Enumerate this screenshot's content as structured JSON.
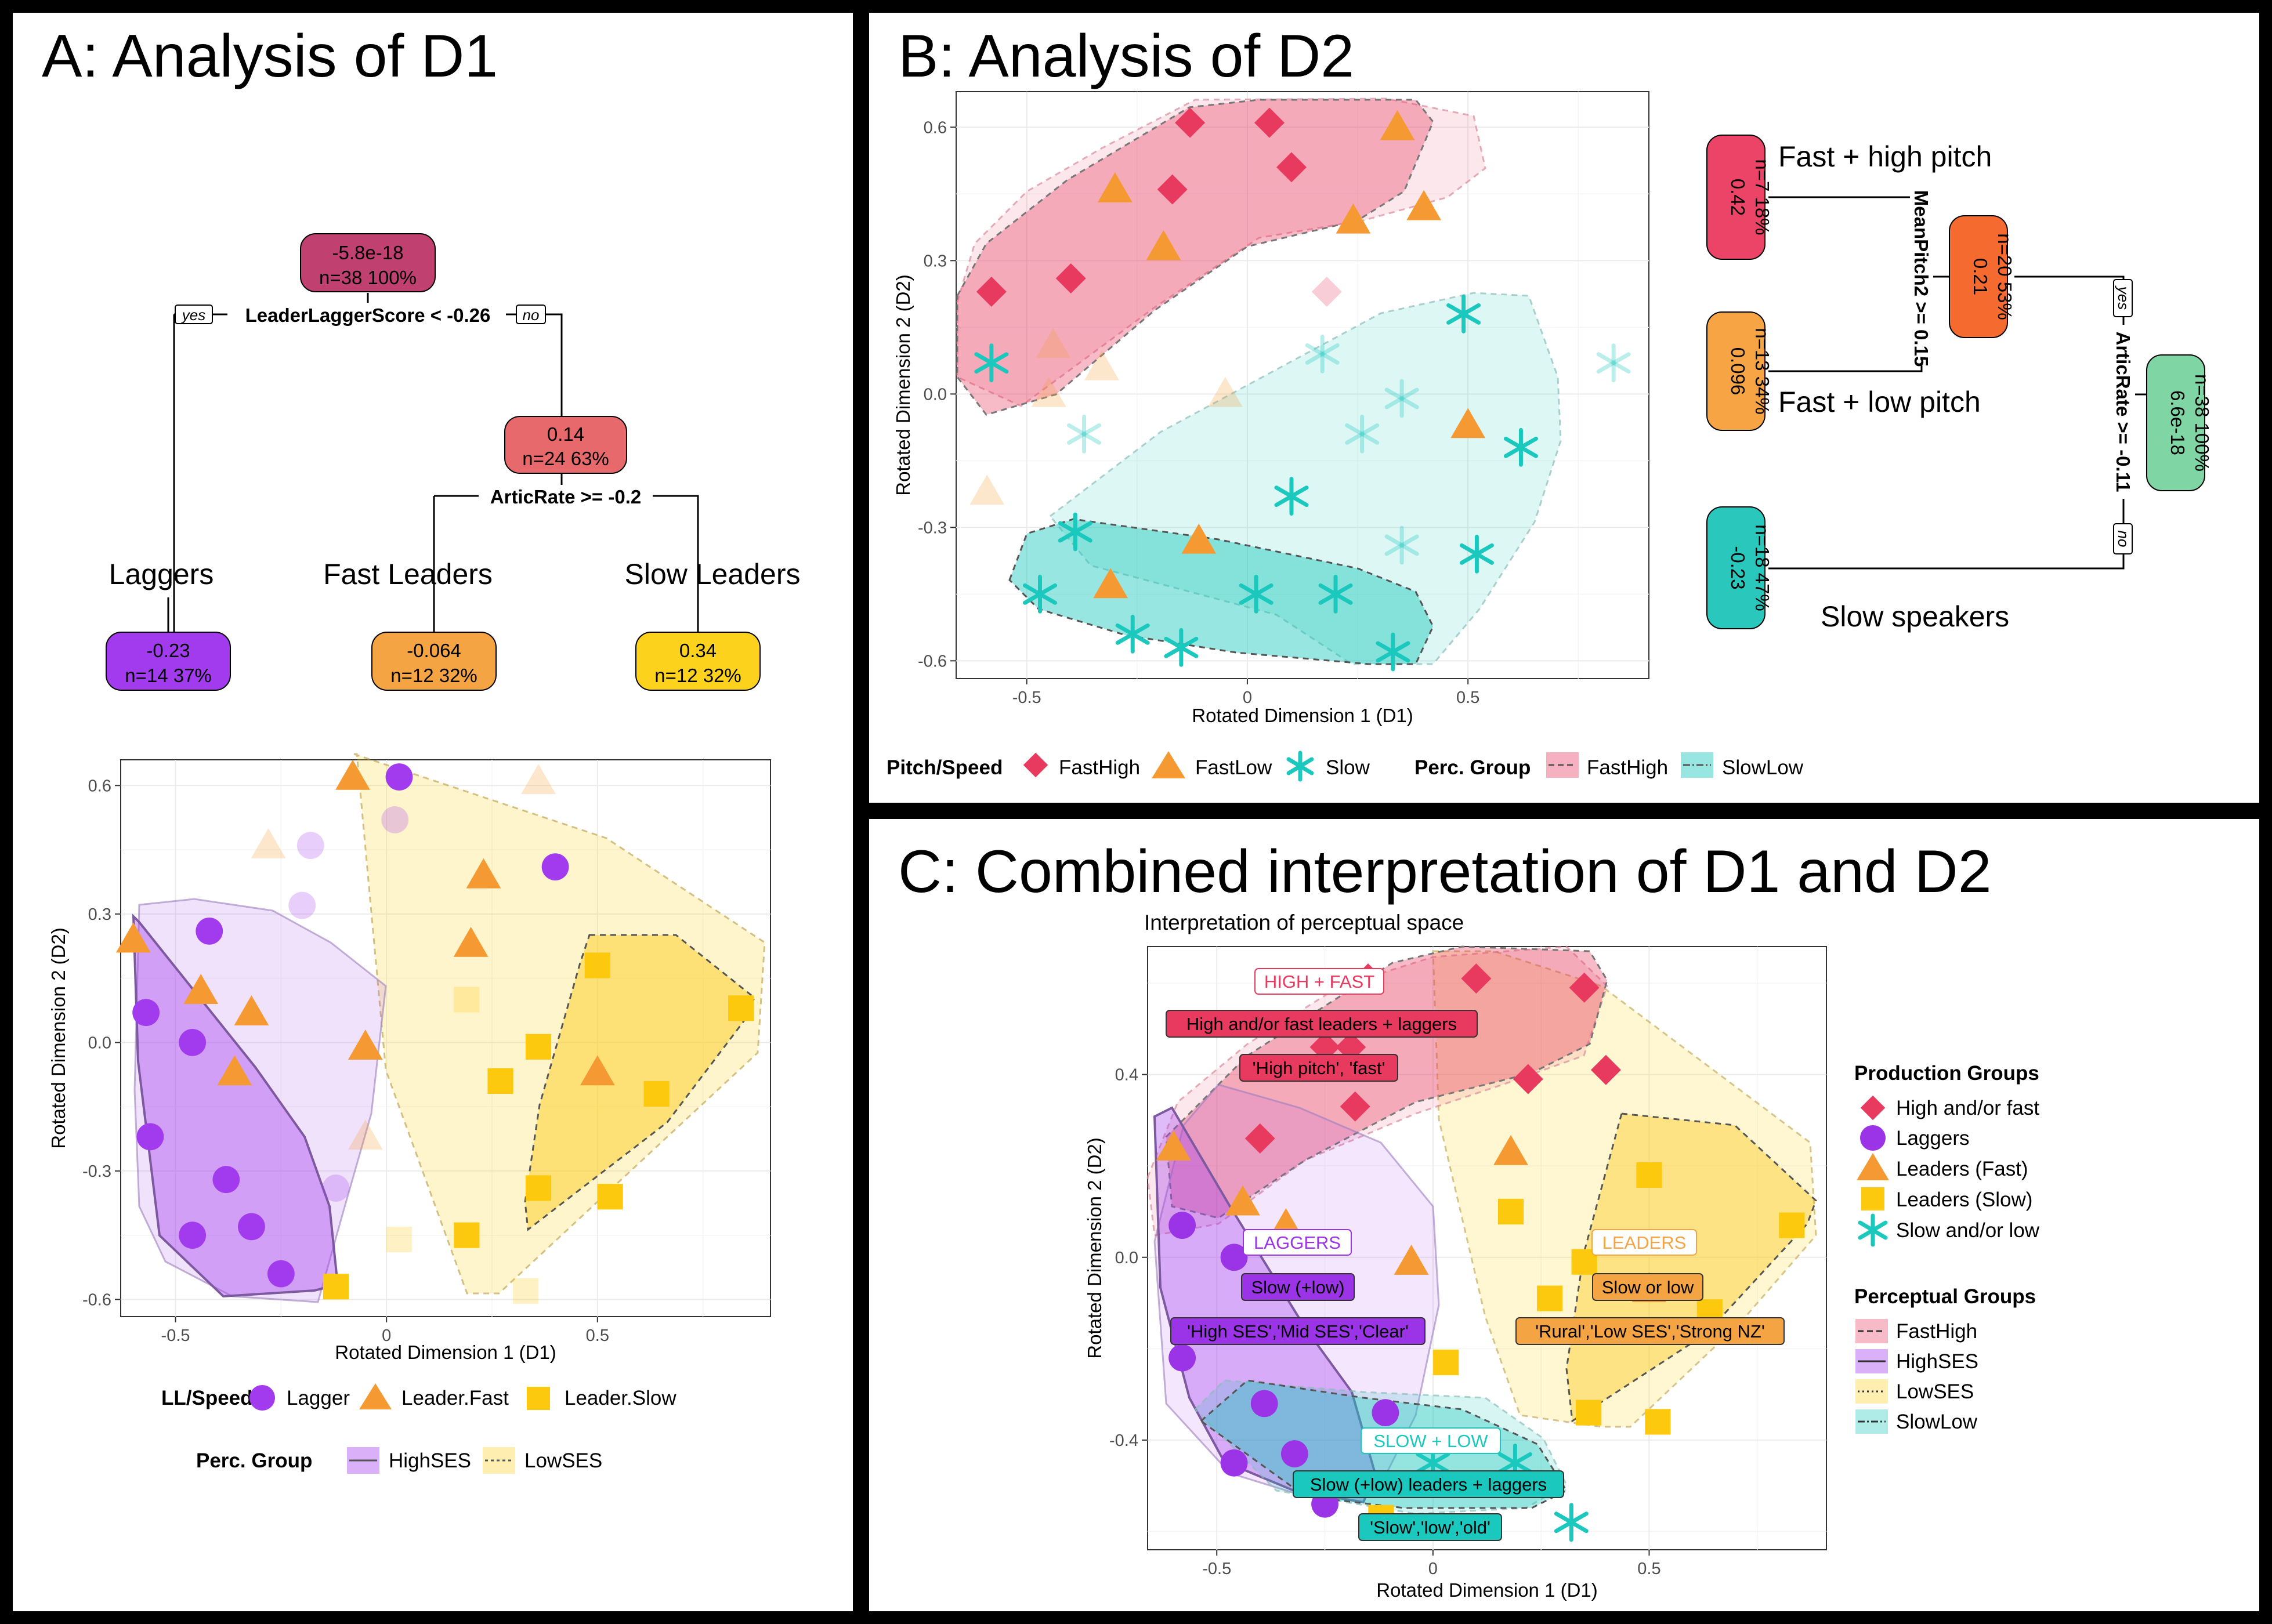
{
  "panels": {
    "a_title": "A: Analysis of D1",
    "b_title": "B: Analysis of D2",
    "c_title": "C: Combined interpretation of D1 and D2",
    "c_subtitle": "Interpretation of perceptual space"
  },
  "tree_a": {
    "root": {
      "value": "-5.8e-18",
      "n": "n=38  100%",
      "color": "#c0406f"
    },
    "split1": "LeaderLaggerScore < -0.26",
    "node2": {
      "value": "0.14",
      "n": "n=24  63%",
      "color": "#e8696b"
    },
    "split2": "ArticRate >= -0.2",
    "yes": "yes",
    "no": "no",
    "leaves": [
      {
        "label": "Laggers",
        "value": "-0.23",
        "n": "n=14  37%",
        "color": "#a23bee"
      },
      {
        "label": "Fast Leaders",
        "value": "-0.064",
        "n": "n=12  32%",
        "color": "#f5a444"
      },
      {
        "label": "Slow Leaders",
        "value": "0.34",
        "n": "n=12  32%",
        "color": "#fdd21c"
      }
    ]
  },
  "tree_b": {
    "root": {
      "value": "6.6e-18",
      "n": "n=38  100%",
      "color": "#7fd6a4"
    },
    "split1": "ArticRate >= -0.11",
    "node2": {
      "value": "0.21",
      "n": "n=20  53%",
      "color": "#f46a2f"
    },
    "split2": "MeanPitch2 >= 0.15",
    "yes": "yes",
    "no": "no",
    "leaves": [
      {
        "label": "Fast + high pitch",
        "value": "0.42",
        "n": "n=7  18%",
        "color": "#ec4466"
      },
      {
        "label": "Fast + low pitch",
        "value": "0.096",
        "n": "n=13  34%",
        "color": "#f7a544"
      },
      {
        "label": "Slow speakers",
        "value": "-0.23",
        "n": "n=18  47%",
        "color": "#2ac8bc"
      }
    ]
  },
  "chart_data": [
    {
      "id": "A",
      "type": "scatter",
      "xlabel": "Rotated Dimension 1 (D1)",
      "ylabel": "Rotated Dimension 2 (D2)",
      "xlim": [
        -0.63,
        0.91
      ],
      "ylim": [
        -0.64,
        0.66
      ],
      "xticks": [
        -0.5,
        0.0,
        0.5
      ],
      "xticklabels": [
        "-0.5",
        "0",
        "0.5"
      ],
      "yticks": [
        -0.6,
        -0.3,
        0.0,
        0.3,
        0.6
      ],
      "yticklabels": [
        "-0.6",
        "-0.3",
        "0.0",
        "0.3",
        "0.6"
      ],
      "legend1": {
        "title": "LL/Speed",
        "items": [
          "Lagger",
          "Leader.Fast",
          "Leader.Slow"
        ]
      },
      "legend2": {
        "title": "Perc. Group",
        "items": [
          "HighSES",
          "LowSES"
        ]
      },
      "series": [
        {
          "name": "Lagger",
          "color": "#a23bee",
          "shape": "circle",
          "points": [
            [
              -0.42,
              0.26
            ],
            [
              -0.57,
              0.07
            ],
            [
              -0.46,
              0.0
            ],
            [
              -0.56,
              -0.22
            ],
            [
              -0.38,
              -0.32
            ],
            [
              -0.46,
              -0.45
            ],
            [
              -0.32,
              -0.43
            ],
            [
              -0.25,
              -0.54
            ],
            [
              0.03,
              0.62
            ],
            [
              0.4,
              0.41
            ]
          ]
        },
        {
          "name": "Lagger (faded)",
          "color": "#a23bee",
          "shape": "circle",
          "opacity": 0.25,
          "points": [
            [
              -0.18,
              0.46
            ],
            [
              -0.2,
              0.32
            ],
            [
              0.02,
              0.52
            ],
            [
              -0.12,
              -0.34
            ]
          ]
        },
        {
          "name": "Leader.Fast",
          "color": "#f59a32",
          "shape": "triangle",
          "points": [
            [
              -0.6,
              0.24
            ],
            [
              -0.44,
              0.12
            ],
            [
              -0.32,
              0.07
            ],
            [
              -0.36,
              -0.07
            ],
            [
              -0.08,
              0.62
            ],
            [
              -0.05,
              -0.01
            ],
            [
              0.23,
              0.39
            ],
            [
              0.2,
              0.23
            ],
            [
              0.5,
              -0.07
            ]
          ]
        },
        {
          "name": "Leader.Fast (faded)",
          "color": "#f59a32",
          "shape": "triangle",
          "opacity": 0.25,
          "points": [
            [
              -0.28,
              0.46
            ],
            [
              0.36,
              0.61
            ],
            [
              -0.05,
              -0.22
            ]
          ]
        },
        {
          "name": "Leader.Slow",
          "color": "#fdc90e",
          "shape": "square",
          "points": [
            [
              -0.12,
              -0.57
            ],
            [
              0.19,
              -0.45
            ],
            [
              0.27,
              -0.09
            ],
            [
              0.36,
              -0.01
            ],
            [
              0.5,
              0.18
            ],
            [
              0.84,
              0.08
            ],
            [
              0.64,
              -0.12
            ],
            [
              0.36,
              -0.34
            ],
            [
              0.53,
              -0.36
            ]
          ]
        },
        {
          "name": "Leader.Slow (faded)",
          "color": "#fdc90e",
          "shape": "square",
          "opacity": 0.25,
          "points": [
            [
              0.19,
              0.1
            ],
            [
              0.03,
              -0.46
            ],
            [
              0.33,
              -0.58
            ]
          ]
        }
      ]
    },
    {
      "id": "B",
      "type": "scatter",
      "xlabel": "Rotated Dimension 1 (D1)",
      "ylabel": "Rotated Dimension 2 (D2)",
      "xlim": [
        -0.66,
        0.91
      ],
      "ylim": [
        -0.64,
        0.68
      ],
      "xticks": [
        -0.5,
        0.0,
        0.5
      ],
      "xticklabels": [
        "-0.5",
        "0",
        "0.5"
      ],
      "yticks": [
        -0.6,
        -0.3,
        0.0,
        0.3,
        0.6
      ],
      "yticklabels": [
        "-0.6",
        "-0.3",
        "0.0",
        "0.3",
        "0.6"
      ],
      "legend1": {
        "title": "Pitch/Speed",
        "items": [
          "FastHigh",
          "FastLow",
          "Slow"
        ]
      },
      "legend2": {
        "title": "Perc. Group",
        "items": [
          "FastHigh",
          "SlowLow"
        ]
      },
      "series": [
        {
          "name": "FastHigh",
          "color": "#e8395f",
          "shape": "diamond",
          "points": [
            [
              -0.58,
              0.23
            ],
            [
              -0.4,
              0.26
            ],
            [
              -0.17,
              0.46
            ],
            [
              -0.13,
              0.61
            ],
            [
              0.1,
              0.51
            ],
            [
              0.05,
              0.61
            ]
          ]
        },
        {
          "name": "FastHigh (faded)",
          "color": "#e8395f",
          "shape": "diamond",
          "opacity": 0.25,
          "points": [
            [
              0.18,
              0.23
            ]
          ]
        },
        {
          "name": "FastLow",
          "color": "#f59a32",
          "shape": "triangle",
          "points": [
            [
              -0.3,
              0.46
            ],
            [
              -0.19,
              0.33
            ],
            [
              0.24,
              0.39
            ],
            [
              0.34,
              0.6
            ],
            [
              0.4,
              0.42
            ],
            [
              0.5,
              -0.07
            ],
            [
              -0.11,
              -0.33
            ],
            [
              -0.31,
              -0.43
            ]
          ]
        },
        {
          "name": "FastLow (faded)",
          "color": "#f59a32",
          "shape": "triangle",
          "opacity": 0.25,
          "points": [
            [
              -0.44,
              0.11
            ],
            [
              -0.33,
              0.06
            ],
            [
              -0.45,
              0.0
            ],
            [
              -0.05,
              0.0
            ],
            [
              -0.59,
              -0.22
            ]
          ]
        },
        {
          "name": "Slow",
          "color": "#1bc8bd",
          "shape": "asterisk",
          "points": [
            [
              -0.58,
              0.07
            ],
            [
              -0.39,
              -0.31
            ],
            [
              -0.47,
              -0.45
            ],
            [
              -0.26,
              -0.54
            ],
            [
              -0.15,
              -0.57
            ],
            [
              0.02,
              -0.45
            ],
            [
              0.1,
              -0.23
            ],
            [
              0.2,
              -0.45
            ],
            [
              0.33,
              -0.58
            ],
            [
              0.49,
              0.18
            ],
            [
              0.62,
              -0.12
            ],
            [
              0.52,
              -0.36
            ]
          ]
        },
        {
          "name": "Slow (faded)",
          "color": "#1bc8bd",
          "shape": "asterisk",
          "opacity": 0.3,
          "points": [
            [
              -0.37,
              -0.09
            ],
            [
              0.17,
              0.09
            ],
            [
              0.35,
              -0.01
            ],
            [
              0.26,
              -0.09
            ],
            [
              0.35,
              -0.34
            ],
            [
              0.83,
              0.07
            ]
          ]
        }
      ]
    },
    {
      "id": "C",
      "type": "scatter",
      "title": "Interpretation of perceptual space",
      "xlabel": "Rotated Dimension 1 (D1)",
      "ylabel": "Rotated Dimension 2 (D2)",
      "xlim": [
        -0.66,
        0.91
      ],
      "ylim": [
        -0.64,
        0.68
      ],
      "xticks": [
        -0.5,
        0.0,
        0.5
      ],
      "xticklabels": [
        "-0.5",
        "0",
        "0.5"
      ],
      "yticks": [
        -0.4,
        0.0,
        0.4
      ],
      "yticklabels": [
        "-0.4",
        "0.0",
        "0.4"
      ],
      "legend1": {
        "title": "Production Groups",
        "items": [
          "High and/or fast",
          "Laggers",
          "Leaders (Fast)",
          "Leaders (Slow)",
          "Slow and/or low"
        ]
      },
      "legend2": {
        "title": "Perceptual Groups",
        "items": [
          "FastHigh",
          "HighSES",
          "LowSES",
          "SlowLow"
        ]
      },
      "series": [
        {
          "name": "High and/or fast",
          "color": "#e8395f",
          "shape": "diamond",
          "points": [
            [
              -0.4,
              0.26
            ],
            [
              -0.19,
              0.46
            ],
            [
              -0.25,
              0.46
            ],
            [
              -0.18,
              0.33
            ],
            [
              -0.15,
              0.61
            ],
            [
              0.1,
              0.61
            ],
            [
              0.22,
              0.39
            ],
            [
              0.35,
              0.59
            ],
            [
              0.4,
              0.41
            ]
          ]
        },
        {
          "name": "Laggers",
          "color": "#9b34e6",
          "shape": "circle",
          "points": [
            [
              -0.58,
              0.07
            ],
            [
              -0.46,
              0.0
            ],
            [
              -0.58,
              -0.22
            ],
            [
              -0.39,
              -0.32
            ],
            [
              -0.46,
              -0.45
            ],
            [
              -0.32,
              -0.43
            ],
            [
              -0.25,
              -0.54
            ],
            [
              -0.11,
              -0.34
            ]
          ]
        },
        {
          "name": "Leaders (Fast)",
          "color": "#f59a32",
          "shape": "triangle",
          "points": [
            [
              -0.6,
              0.24
            ],
            [
              -0.44,
              0.12
            ],
            [
              -0.34,
              0.07
            ],
            [
              -0.05,
              -0.01
            ],
            [
              0.18,
              0.23
            ],
            [
              0.5,
              -0.07
            ]
          ]
        },
        {
          "name": "Leaders (Slow)",
          "color": "#fdc90e",
          "shape": "square",
          "points": [
            [
              -0.12,
              -0.57
            ],
            [
              0.18,
              0.1
            ],
            [
              0.03,
              -0.23
            ],
            [
              0.27,
              -0.09
            ],
            [
              0.35,
              -0.01
            ],
            [
              0.5,
              0.18
            ],
            [
              0.83,
              0.07
            ],
            [
              0.64,
              -0.12
            ],
            [
              0.36,
              -0.34
            ],
            [
              0.52,
              -0.36
            ]
          ]
        },
        {
          "name": "Slow and/or low",
          "color": "#1bc8bd",
          "shape": "asterisk",
          "points": [
            [
              0.19,
              -0.45
            ],
            [
              0.32,
              -0.58
            ],
            [
              0.0,
              -0.45
            ]
          ]
        }
      ],
      "annotations": [
        {
          "text": "HIGH + FAST",
          "style": "outline",
          "color": "#e8395f"
        },
        {
          "text": "High and/or fast leaders + laggers",
          "style": "fill",
          "color": "#e8395f"
        },
        {
          "text": "'High pitch', 'fast'",
          "style": "fill",
          "color": "#e8395f"
        },
        {
          "text": "LAGGERS",
          "style": "outline",
          "color": "#9b34e6"
        },
        {
          "text": "Slow (+low)",
          "style": "fill",
          "color": "#9b34e6"
        },
        {
          "text": "'High SES','Mid SES','Clear'",
          "style": "fill",
          "color": "#9b34e6"
        },
        {
          "text": "LEADERS",
          "style": "outline",
          "color": "#f5a444"
        },
        {
          "text": "Slow or low",
          "style": "fill",
          "color": "#f5a444"
        },
        {
          "text": "'Rural','Low SES','Strong NZ'",
          "style": "fill",
          "color": "#f5a444"
        },
        {
          "text": "SLOW + LOW",
          "style": "outline",
          "color": "#1bc8bd"
        },
        {
          "text": "Slow (+low) leaders + laggers",
          "style": "fill",
          "color": "#1bc8bd"
        },
        {
          "text": "'Slow','low','old'",
          "style": "fill",
          "color": "#1bc8bd"
        }
      ]
    }
  ]
}
